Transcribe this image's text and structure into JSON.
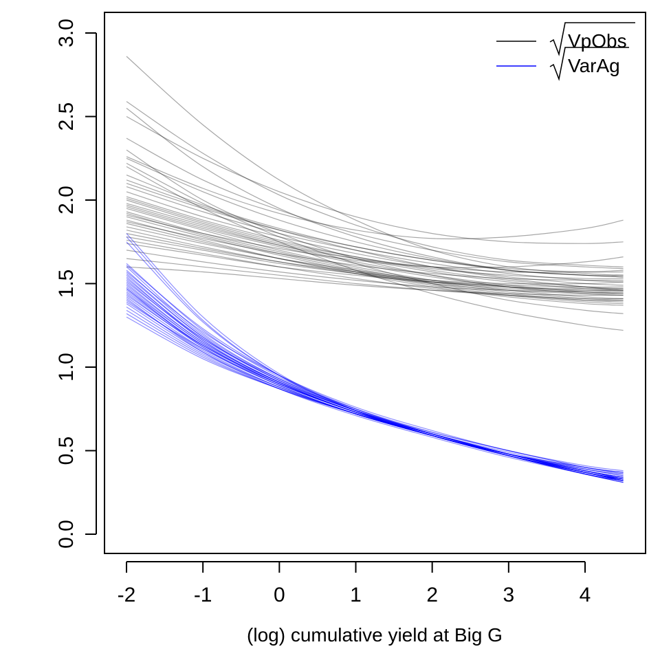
{
  "chart_data": {
    "type": "line",
    "title": "",
    "xlabel": "(log) cumulative yield at Big G",
    "ylabel": "",
    "xlim": [
      -2,
      4.5
    ],
    "ylim": [
      0.0,
      3.0
    ],
    "x_ticks": [
      -2,
      -1,
      0,
      1,
      2,
      3,
      4
    ],
    "x_tick_labels": [
      "-2",
      "-1",
      "0",
      "1",
      "2",
      "3",
      "4"
    ],
    "y_ticks": [
      0.0,
      0.5,
      1.0,
      1.5,
      2.0,
      2.5,
      3.0
    ],
    "y_tick_labels": [
      "0.0",
      "0.5",
      "1.0",
      "1.5",
      "2.0",
      "2.5",
      "3.0"
    ],
    "grid": false,
    "legend_position": "top-right",
    "note": "Each series is a bundle of many thin posterior draw curves; representative draws listed with values at the sample x points.",
    "x_samples": [
      -2,
      -1,
      0,
      1,
      2,
      3,
      4,
      4.5
    ],
    "series": [
      {
        "name": "VpObs",
        "legend_label": "VpObs",
        "sqrt_symbol": true,
        "color": "#000000",
        "opacity": 0.35,
        "draws": [
          [
            2.86,
            2.45,
            2.12,
            1.88,
            1.7,
            1.6,
            1.56,
            1.55
          ],
          [
            2.59,
            2.28,
            2.03,
            1.85,
            1.72,
            1.64,
            1.61,
            1.6
          ],
          [
            2.55,
            2.2,
            1.95,
            1.78,
            1.66,
            1.58,
            1.55,
            1.55
          ],
          [
            2.5,
            2.25,
            2.05,
            1.9,
            1.8,
            1.75,
            1.74,
            1.75
          ],
          [
            2.37,
            2.12,
            1.94,
            1.8,
            1.7,
            1.63,
            1.6,
            1.59
          ],
          [
            2.3,
            2.0,
            1.8,
            1.65,
            1.55,
            1.48,
            1.46,
            1.46
          ],
          [
            2.26,
            2.07,
            1.92,
            1.82,
            1.77,
            1.78,
            1.83,
            1.88
          ],
          [
            2.25,
            2.05,
            1.88,
            1.75,
            1.65,
            1.58,
            1.55,
            1.54
          ],
          [
            2.22,
            1.98,
            1.78,
            1.62,
            1.5,
            1.4,
            1.34,
            1.32
          ],
          [
            2.2,
            1.95,
            1.75,
            1.58,
            1.44,
            1.33,
            1.25,
            1.22
          ],
          [
            2.15,
            1.97,
            1.83,
            1.72,
            1.64,
            1.59,
            1.57,
            1.57
          ],
          [
            2.1,
            1.95,
            1.82,
            1.72,
            1.64,
            1.58,
            1.55,
            1.54
          ],
          [
            2.08,
            1.93,
            1.8,
            1.7,
            1.62,
            1.56,
            1.52,
            1.51
          ],
          [
            2.05,
            1.9,
            1.78,
            1.68,
            1.6,
            1.54,
            1.5,
            1.49
          ],
          [
            2.02,
            1.88,
            1.76,
            1.66,
            1.58,
            1.52,
            1.48,
            1.47
          ],
          [
            2.0,
            1.86,
            1.74,
            1.65,
            1.57,
            1.51,
            1.47,
            1.46
          ],
          [
            1.98,
            1.85,
            1.73,
            1.63,
            1.55,
            1.49,
            1.45,
            1.44
          ],
          [
            1.96,
            1.83,
            1.72,
            1.62,
            1.54,
            1.48,
            1.44,
            1.43
          ],
          [
            1.95,
            1.82,
            1.7,
            1.6,
            1.52,
            1.46,
            1.42,
            1.41
          ],
          [
            1.93,
            1.8,
            1.69,
            1.59,
            1.51,
            1.45,
            1.41,
            1.4
          ],
          [
            1.92,
            1.79,
            1.68,
            1.58,
            1.5,
            1.44,
            1.4,
            1.39
          ],
          [
            1.9,
            1.78,
            1.67,
            1.57,
            1.49,
            1.43,
            1.39,
            1.38
          ],
          [
            1.88,
            1.76,
            1.65,
            1.56,
            1.48,
            1.42,
            1.38,
            1.37
          ],
          [
            1.86,
            1.75,
            1.65,
            1.57,
            1.51,
            1.47,
            1.45,
            1.45
          ],
          [
            1.84,
            1.74,
            1.65,
            1.58,
            1.52,
            1.48,
            1.46,
            1.46
          ],
          [
            1.82,
            1.72,
            1.63,
            1.56,
            1.5,
            1.46,
            1.44,
            1.44
          ],
          [
            1.8,
            1.71,
            1.63,
            1.57,
            1.52,
            1.5,
            1.5,
            1.51
          ],
          [
            1.78,
            1.7,
            1.62,
            1.56,
            1.51,
            1.48,
            1.47,
            1.47
          ],
          [
            1.76,
            1.68,
            1.6,
            1.53,
            1.47,
            1.43,
            1.4,
            1.4
          ],
          [
            1.74,
            1.67,
            1.6,
            1.55,
            1.51,
            1.49,
            1.48,
            1.48
          ],
          [
            1.7,
            1.63,
            1.57,
            1.52,
            1.48,
            1.46,
            1.45,
            1.45
          ],
          [
            1.65,
            1.6,
            1.55,
            1.5,
            1.46,
            1.43,
            1.41,
            1.41
          ],
          [
            1.6,
            1.57,
            1.53,
            1.49,
            1.46,
            1.44,
            1.43,
            1.43
          ],
          [
            1.91,
            1.8,
            1.71,
            1.64,
            1.6,
            1.6,
            1.63,
            1.66
          ],
          [
            1.97,
            1.84,
            1.73,
            1.65,
            1.6,
            1.57,
            1.57,
            1.58
          ],
          [
            2.01,
            1.87,
            1.75,
            1.66,
            1.59,
            1.55,
            1.53,
            1.53
          ],
          [
            1.87,
            1.77,
            1.68,
            1.61,
            1.56,
            1.53,
            1.52,
            1.52
          ],
          [
            2.12,
            1.96,
            1.82,
            1.7,
            1.6,
            1.53,
            1.48,
            1.46
          ]
        ]
      },
      {
        "name": "VarAg",
        "legend_label": "VarAg",
        "sqrt_symbol": true,
        "color": "#0000ff",
        "opacity": 0.45,
        "draws": [
          [
            1.8,
            1.3,
            0.96,
            0.74,
            0.59,
            0.48,
            0.39,
            0.36
          ],
          [
            1.78,
            1.28,
            0.95,
            0.74,
            0.59,
            0.48,
            0.4,
            0.37
          ],
          [
            1.75,
            1.27,
            0.95,
            0.74,
            0.59,
            0.48,
            0.4,
            0.36
          ],
          [
            1.62,
            1.22,
            0.94,
            0.75,
            0.6,
            0.48,
            0.38,
            0.34
          ],
          [
            1.6,
            1.2,
            0.93,
            0.74,
            0.6,
            0.48,
            0.38,
            0.34
          ],
          [
            1.58,
            1.19,
            0.93,
            0.74,
            0.6,
            0.48,
            0.38,
            0.34
          ],
          [
            1.56,
            1.18,
            0.92,
            0.74,
            0.6,
            0.48,
            0.38,
            0.34
          ],
          [
            1.55,
            1.18,
            0.92,
            0.74,
            0.6,
            0.48,
            0.38,
            0.33
          ],
          [
            1.53,
            1.17,
            0.92,
            0.74,
            0.6,
            0.48,
            0.38,
            0.33
          ],
          [
            1.52,
            1.16,
            0.91,
            0.73,
            0.6,
            0.48,
            0.38,
            0.33
          ],
          [
            1.5,
            1.15,
            0.91,
            0.73,
            0.6,
            0.48,
            0.37,
            0.33
          ],
          [
            1.49,
            1.15,
            0.91,
            0.73,
            0.59,
            0.48,
            0.37,
            0.33
          ],
          [
            1.48,
            1.14,
            0.9,
            0.73,
            0.59,
            0.47,
            0.37,
            0.33
          ],
          [
            1.47,
            1.14,
            0.9,
            0.73,
            0.59,
            0.47,
            0.37,
            0.32
          ],
          [
            1.46,
            1.13,
            0.9,
            0.73,
            0.59,
            0.47,
            0.37,
            0.32
          ],
          [
            1.45,
            1.13,
            0.9,
            0.73,
            0.59,
            0.47,
            0.37,
            0.32
          ],
          [
            1.44,
            1.12,
            0.89,
            0.72,
            0.59,
            0.47,
            0.36,
            0.32
          ],
          [
            1.42,
            1.11,
            0.89,
            0.72,
            0.59,
            0.47,
            0.36,
            0.32
          ],
          [
            1.4,
            1.1,
            0.88,
            0.72,
            0.59,
            0.47,
            0.36,
            0.32
          ],
          [
            1.38,
            1.09,
            0.88,
            0.72,
            0.59,
            0.47,
            0.37,
            0.32
          ],
          [
            1.36,
            1.08,
            0.88,
            0.72,
            0.59,
            0.47,
            0.37,
            0.32
          ],
          [
            1.34,
            1.07,
            0.87,
            0.72,
            0.59,
            0.47,
            0.37,
            0.32
          ],
          [
            1.32,
            1.06,
            0.87,
            0.72,
            0.59,
            0.48,
            0.37,
            0.33
          ],
          [
            1.3,
            1.05,
            0.87,
            0.72,
            0.6,
            0.48,
            0.37,
            0.33
          ],
          [
            1.57,
            1.21,
            0.95,
            0.76,
            0.62,
            0.5,
            0.41,
            0.38
          ],
          [
            1.51,
            1.17,
            0.93,
            0.75,
            0.61,
            0.5,
            0.4,
            0.37
          ],
          [
            1.43,
            1.13,
            0.91,
            0.74,
            0.61,
            0.5,
            0.4,
            0.37
          ],
          [
            1.39,
            1.11,
            0.9,
            0.73,
            0.6,
            0.49,
            0.39,
            0.35
          ],
          [
            1.54,
            1.16,
            0.91,
            0.73,
            0.59,
            0.47,
            0.36,
            0.31
          ],
          [
            1.47,
            1.12,
            0.89,
            0.72,
            0.59,
            0.47,
            0.36,
            0.31
          ],
          [
            1.41,
            1.09,
            0.87,
            0.71,
            0.58,
            0.46,
            0.36,
            0.31
          ],
          [
            1.61,
            1.23,
            0.95,
            0.75,
            0.6,
            0.48,
            0.39,
            0.35
          ]
        ]
      }
    ]
  }
}
